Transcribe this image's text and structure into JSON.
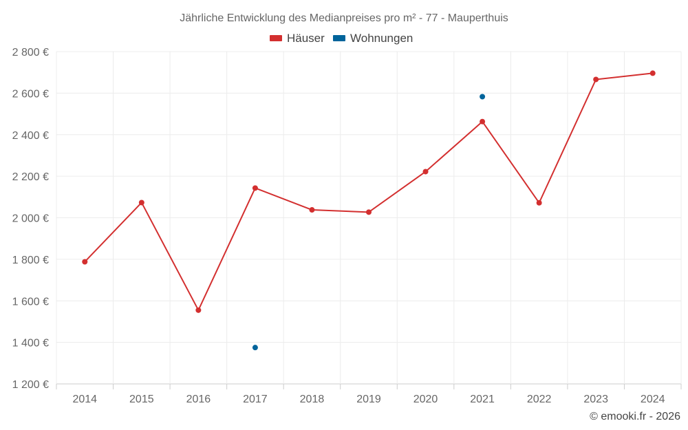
{
  "chart_data": {
    "type": "line",
    "title": "Jährliche Entwicklung des Medianpreises pro m² - 77 - Mauperthuis",
    "xlabel": "",
    "ylabel": "",
    "categories": [
      "2014",
      "2015",
      "2016",
      "2017",
      "2018",
      "2019",
      "2020",
      "2021",
      "2022",
      "2023",
      "2024"
    ],
    "ylim": [
      1200,
      2800
    ],
    "yticks": [
      1200,
      1400,
      1600,
      1800,
      2000,
      2200,
      2400,
      2600,
      2800
    ],
    "ytick_labels": [
      "1 200 €",
      "1 400 €",
      "1 600 €",
      "1 800 €",
      "2 000 €",
      "2 200 €",
      "2 400 €",
      "2 600 €",
      "2 800 €"
    ],
    "grid": true,
    "legend_position": "top-center",
    "series": [
      {
        "name": "Häuser",
        "color": "#d32f2f",
        "values": [
          1788,
          2073,
          1555,
          2143,
          2038,
          2027,
          2222,
          2463,
          2072,
          2666,
          2696
        ]
      },
      {
        "name": "Wohnungen",
        "color": "#01649b",
        "values": [
          null,
          null,
          null,
          1375,
          null,
          null,
          null,
          2583,
          null,
          null,
          null
        ]
      }
    ]
  },
  "footer": {
    "credit": "© emooki.fr - 2026"
  }
}
